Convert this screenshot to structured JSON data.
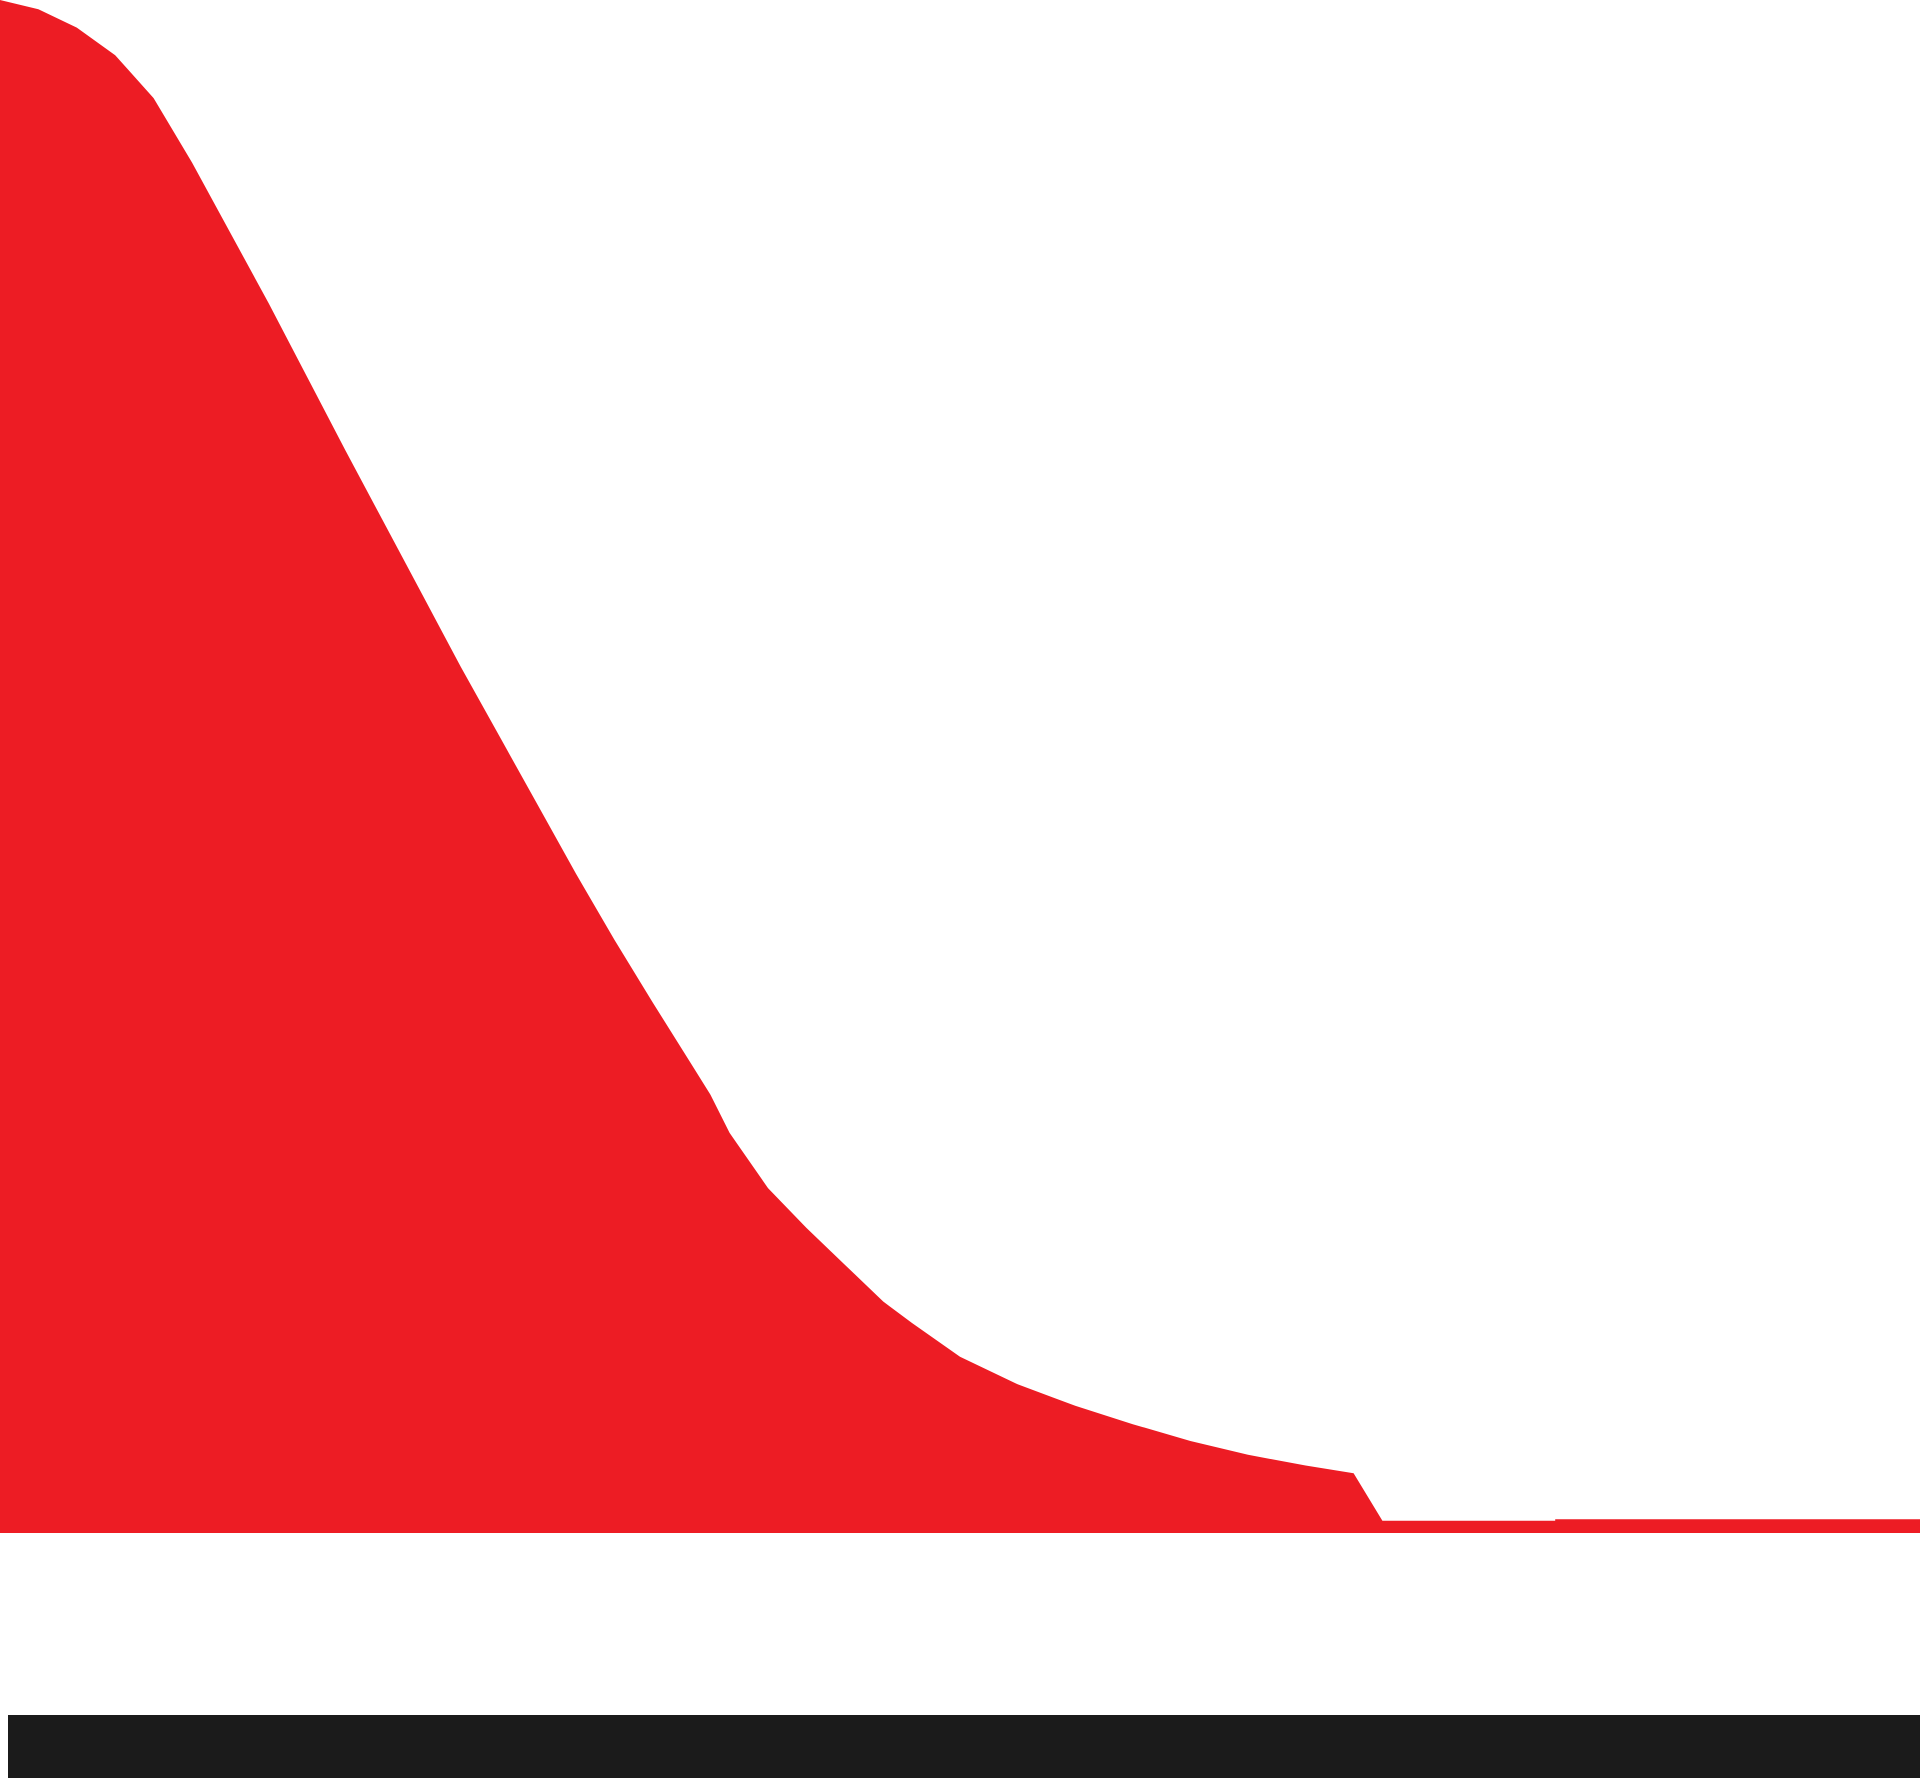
{
  "chart_data": {
    "type": "area",
    "title": "",
    "xlabel": "",
    "ylabel": "",
    "grid": false,
    "legend": "none",
    "xlim": [
      0,
      100
    ],
    "ylim": [
      0,
      100
    ],
    "series": [
      {
        "color": "#ed1c24",
        "points": [
          {
            "x": 0,
            "y": 100
          },
          {
            "x": 2,
            "y": 99.4
          },
          {
            "x": 4,
            "y": 98.2
          },
          {
            "x": 6,
            "y": 96.4
          },
          {
            "x": 8,
            "y": 93.6
          },
          {
            "x": 10,
            "y": 89.4
          },
          {
            "x": 12,
            "y": 84.8
          },
          {
            "x": 14,
            "y": 80.2
          },
          {
            "x": 16,
            "y": 75.4
          },
          {
            "x": 18,
            "y": 70.6
          },
          {
            "x": 20,
            "y": 65.9
          },
          {
            "x": 22,
            "y": 61.2
          },
          {
            "x": 24,
            "y": 56.5
          },
          {
            "x": 26,
            "y": 52.0
          },
          {
            "x": 28,
            "y": 47.5
          },
          {
            "x": 30,
            "y": 43.0
          },
          {
            "x": 32,
            "y": 38.7
          },
          {
            "x": 34,
            "y": 34.6
          },
          {
            "x": 36,
            "y": 30.6
          },
          {
            "x": 37,
            "y": 28.6
          },
          {
            "x": 38,
            "y": 26.1
          },
          {
            "x": 40,
            "y": 22.5
          },
          {
            "x": 42,
            "y": 19.9
          },
          {
            "x": 44,
            "y": 17.5
          },
          {
            "x": 46,
            "y": 15.1
          },
          {
            "x": 47.5,
            "y": 13.7
          },
          {
            "x": 50,
            "y": 11.5
          },
          {
            "x": 53,
            "y": 9.7
          },
          {
            "x": 56,
            "y": 8.3
          },
          {
            "x": 59,
            "y": 7.1
          },
          {
            "x": 62,
            "y": 6.0
          },
          {
            "x": 65,
            "y": 5.1
          },
          {
            "x": 68,
            "y": 4.4
          },
          {
            "x": 70.5,
            "y": 3.9
          },
          {
            "x": 72,
            "y": 0.8
          },
          {
            "x": 81,
            "y": 0.8
          },
          {
            "x": 81,
            "y": 0.9
          },
          {
            "x": 100,
            "y": 0.9
          }
        ]
      }
    ]
  },
  "colors": {
    "fill": "#ed1c24",
    "baseline_bar": "#1b1b1b",
    "background": "#ffffff"
  }
}
